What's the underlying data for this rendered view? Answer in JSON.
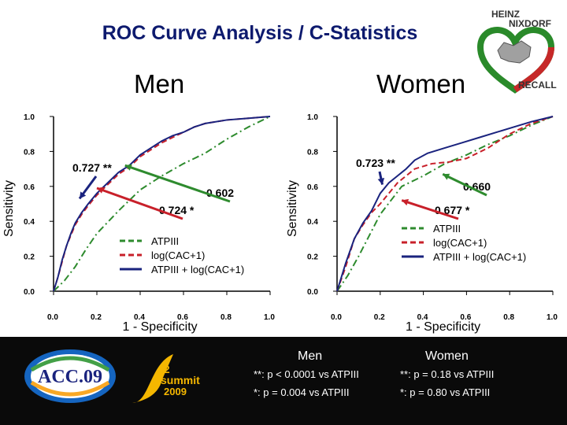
{
  "title": "ROC Curve Analysis / C-Statistics",
  "panels": {
    "men": {
      "heading": "Men"
    },
    "women": {
      "heading": "Women"
    }
  },
  "logo": {
    "line1": "HEINZ",
    "line2": "NIXDORF",
    "line3": "RECALL"
  },
  "chart_data": [
    {
      "type": "line",
      "name": "Men",
      "xlabel": "1 - Specificity",
      "ylabel": "Sensitivity",
      "xlim": [
        0,
        1
      ],
      "ylim": [
        0,
        1
      ],
      "xticks": [
        "0.0",
        "0.2",
        "0.4",
        "0.6",
        "0.8",
        "1.0"
      ],
      "yticks": [
        "0.0",
        "0.2",
        "0.4",
        "0.6",
        "0.8",
        "1.0"
      ],
      "legend": [
        "ATPIII",
        "log(CAC+1)",
        "ATPIII + log(CAC+1)"
      ],
      "series": [
        {
          "name": "ATPIII",
          "color": "#2e8b2e",
          "dash": true,
          "x": [
            0,
            0.05,
            0.1,
            0.15,
            0.2,
            0.3,
            0.4,
            0.5,
            0.6,
            0.7,
            0.8,
            0.9,
            1.0
          ],
          "y": [
            0,
            0.06,
            0.14,
            0.24,
            0.33,
            0.46,
            0.58,
            0.66,
            0.73,
            0.79,
            0.87,
            0.94,
            1.0
          ]
        },
        {
          "name": "log(CAC+1)",
          "color": "#c8202a",
          "dash": true,
          "x": [
            0,
            0.02,
            0.04,
            0.06,
            0.08,
            0.1,
            0.13,
            0.16,
            0.2,
            0.25,
            0.3,
            0.35,
            0.4,
            0.45,
            0.5,
            0.55,
            0.6,
            0.65,
            0.7,
            0.8,
            0.9,
            1.0
          ],
          "y": [
            0,
            0.08,
            0.17,
            0.26,
            0.32,
            0.38,
            0.44,
            0.49,
            0.55,
            0.61,
            0.67,
            0.71,
            0.77,
            0.81,
            0.85,
            0.88,
            0.91,
            0.94,
            0.96,
            0.98,
            0.99,
            1.0
          ]
        },
        {
          "name": "ATPIII + log(CAC+1)",
          "color": "#1a237e",
          "dash": false,
          "x": [
            0,
            0.02,
            0.04,
            0.06,
            0.08,
            0.1,
            0.13,
            0.16,
            0.2,
            0.25,
            0.3,
            0.35,
            0.4,
            0.45,
            0.5,
            0.55,
            0.6,
            0.65,
            0.7,
            0.8,
            0.9,
            1.0
          ],
          "y": [
            0,
            0.08,
            0.18,
            0.26,
            0.33,
            0.39,
            0.45,
            0.5,
            0.56,
            0.62,
            0.68,
            0.72,
            0.78,
            0.82,
            0.86,
            0.89,
            0.91,
            0.94,
            0.96,
            0.98,
            0.99,
            1.0
          ]
        }
      ],
      "annotations": [
        {
          "text": "0.727 **",
          "color": "#1a237e",
          "target": [
            0.12,
            0.53
          ]
        },
        {
          "text": "0.724 *",
          "color": "#c8202a",
          "target": [
            0.2,
            0.59
          ]
        },
        {
          "text": "0.602",
          "color": "#2e8b2e",
          "target": [
            0.33,
            0.72
          ]
        }
      ]
    },
    {
      "type": "line",
      "name": "Women",
      "xlabel": "1 - Specificity",
      "ylabel": "Sensitivity",
      "xlim": [
        0,
        1
      ],
      "ylim": [
        0,
        1
      ],
      "xticks": [
        "0.0",
        "0.2",
        "0.4",
        "0.6",
        "0.8",
        "1.0"
      ],
      "yticks": [
        "0.0",
        "0.2",
        "0.4",
        "0.6",
        "0.8",
        "1.0"
      ],
      "legend": [
        "ATPIII",
        "log(CAC+1)",
        "ATPIII + log(CAC+1)"
      ],
      "series": [
        {
          "name": "ATPIII",
          "color": "#2e8b2e",
          "dash": true,
          "x": [
            0,
            0.05,
            0.1,
            0.15,
            0.2,
            0.25,
            0.3,
            0.4,
            0.5,
            0.6,
            0.7,
            0.8,
            0.9,
            1.0
          ],
          "y": [
            0,
            0.09,
            0.2,
            0.32,
            0.44,
            0.52,
            0.6,
            0.66,
            0.73,
            0.78,
            0.84,
            0.89,
            0.95,
            1.0
          ]
        },
        {
          "name": "log(CAC+1)",
          "color": "#c8202a",
          "dash": true,
          "x": [
            0,
            0.04,
            0.08,
            0.12,
            0.16,
            0.2,
            0.24,
            0.28,
            0.32,
            0.36,
            0.44,
            0.52,
            0.6,
            0.7,
            0.8,
            0.9,
            1.0
          ],
          "y": [
            0,
            0.14,
            0.3,
            0.38,
            0.45,
            0.5,
            0.56,
            0.62,
            0.66,
            0.7,
            0.73,
            0.74,
            0.76,
            0.82,
            0.9,
            0.96,
            1.0
          ]
        },
        {
          "name": "ATPIII + log(CAC+1)",
          "color": "#1a237e",
          "dash": false,
          "x": [
            0,
            0.04,
            0.08,
            0.12,
            0.16,
            0.2,
            0.24,
            0.28,
            0.32,
            0.36,
            0.42,
            0.5,
            0.58,
            0.66,
            0.74,
            0.82,
            0.9,
            1.0
          ],
          "y": [
            0,
            0.16,
            0.3,
            0.39,
            0.46,
            0.56,
            0.62,
            0.66,
            0.7,
            0.75,
            0.79,
            0.82,
            0.85,
            0.88,
            0.91,
            0.94,
            0.97,
            1.0
          ]
        }
      ],
      "annotations": [
        {
          "text": "0.723 **",
          "color": "#1a237e",
          "target": [
            0.21,
            0.61
          ]
        },
        {
          "text": "0.660",
          "color": "#2e8b2e",
          "target": [
            0.49,
            0.67
          ]
        },
        {
          "text": "0.677 *",
          "color": "#c8202a",
          "target": [
            0.3,
            0.52
          ]
        }
      ]
    }
  ],
  "stats": {
    "men": {
      "heading": "Men",
      "line1": "**: p < 0.0001 vs ATPIII",
      "line2": "*: p = 0.004 vs ATPIII"
    },
    "women": {
      "heading": "Women",
      "line1": "**: p = 0.18 vs ATPIII",
      "line2": "*: p = 0.80 vs ATPIII"
    }
  },
  "footer": {
    "acc": "ACC.09",
    "i2": "i2",
    "summit": "summit",
    "year": "2009"
  }
}
